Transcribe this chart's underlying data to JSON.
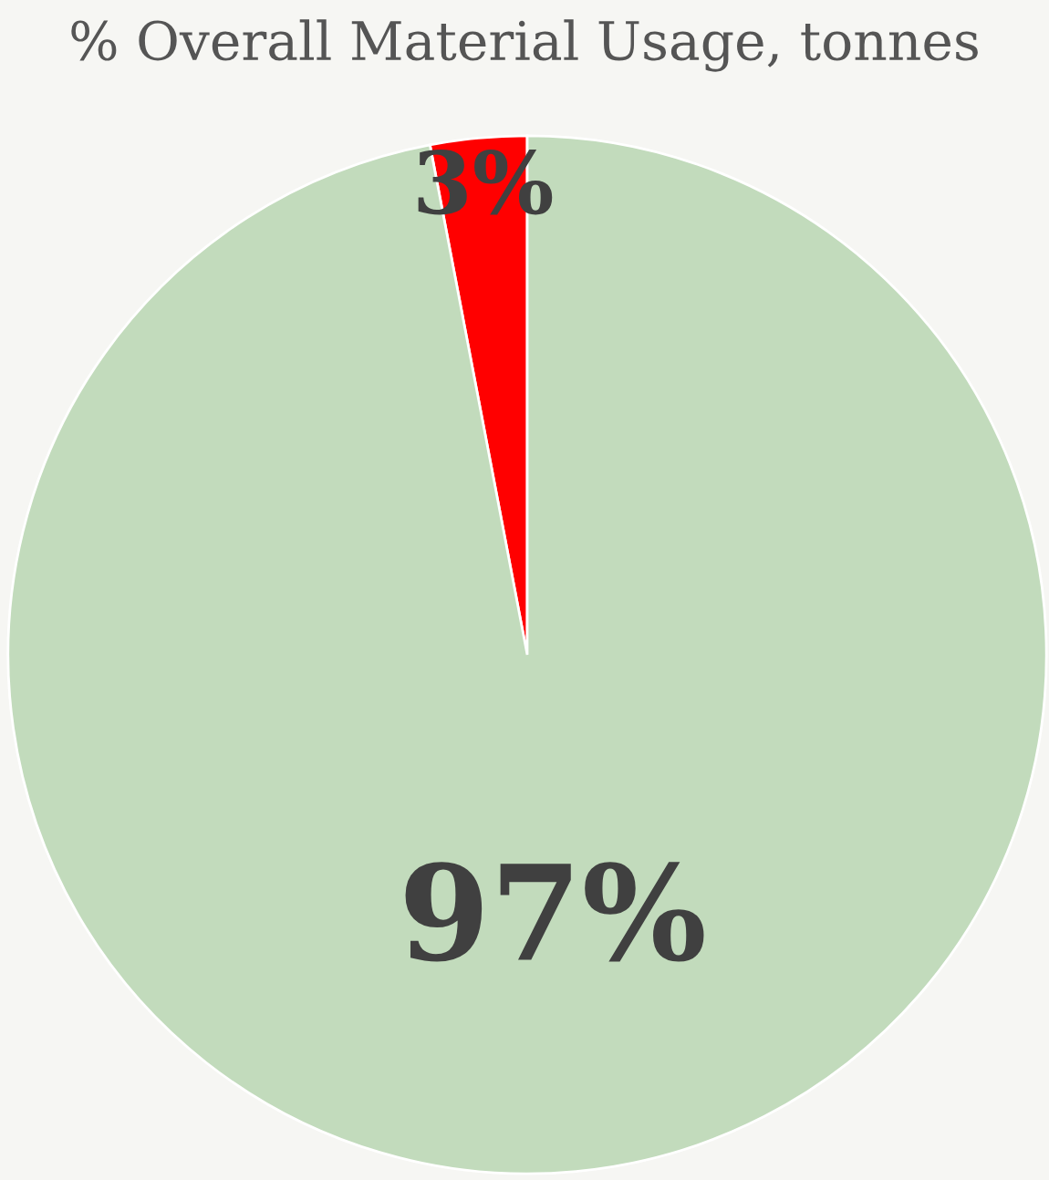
{
  "chart_data": {
    "type": "pie",
    "title": "% Overall Material Usage, tonnes",
    "categories": [
      null,
      null
    ],
    "values": [
      3,
      97
    ],
    "colors": [
      "#ff0000",
      "#c2dbbc"
    ],
    "value_labels": [
      "3%",
      "97%"
    ]
  }
}
